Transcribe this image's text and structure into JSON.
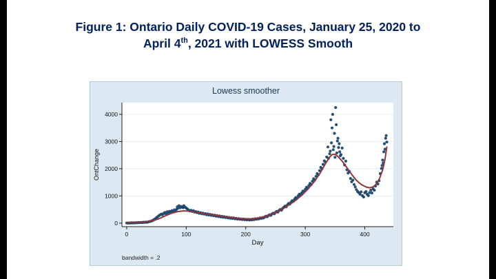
{
  "slide": {
    "title_line1": "Figure 1: Ontario Daily COVID-19 Cases, January 25, 2020 to",
    "title_line2_base": "April 4",
    "title_line2_sup": "th",
    "title_line2_rest": ", 2021 with LOWESS Smooth",
    "title_color": "#002060"
  },
  "chart_data": {
    "type": "scatter",
    "title": "Lowess smoother",
    "xlabel": "Day",
    "ylabel": "OntChange",
    "note": "bandwidth = .2",
    "legend_position": "none",
    "grid": true,
    "xlim": [
      -8,
      448
    ],
    "ylim": [
      -130,
      4430
    ],
    "xticks": [
      0,
      100,
      200,
      300,
      400
    ],
    "yticks": [
      0,
      1000,
      2000,
      3000,
      4000
    ],
    "colors": {
      "scatter": "#1a476f",
      "lowess": "#90353b",
      "plot_bg": "#ffffff",
      "outer_bg": "#dce8f2",
      "grid": "#e2edf6",
      "axis": "#1c1c1c",
      "tick_text": "#111111"
    },
    "series": [
      {
        "name": "OntChange scatter",
        "type": "scatter",
        "points": [
          [
            0,
            5
          ],
          [
            2,
            1
          ],
          [
            4,
            8
          ],
          [
            6,
            3
          ],
          [
            8,
            12
          ],
          [
            10,
            6
          ],
          [
            12,
            15
          ],
          [
            14,
            9
          ],
          [
            16,
            18
          ],
          [
            18,
            12
          ],
          [
            20,
            22
          ],
          [
            22,
            16
          ],
          [
            24,
            28
          ],
          [
            26,
            20
          ],
          [
            28,
            34
          ],
          [
            30,
            26
          ],
          [
            32,
            40
          ],
          [
            34,
            32
          ],
          [
            36,
            48
          ],
          [
            38,
            55
          ],
          [
            40,
            65
          ],
          [
            42,
            80
          ],
          [
            44,
            100
          ],
          [
            46,
            130
          ],
          [
            48,
            160
          ],
          [
            50,
            200
          ],
          [
            52,
            235
          ],
          [
            54,
            270
          ],
          [
            56,
            300
          ],
          [
            58,
            330
          ],
          [
            60,
            310
          ],
          [
            62,
            355
          ],
          [
            64,
            390
          ],
          [
            66,
            340
          ],
          [
            68,
            420
          ],
          [
            70,
            380
          ],
          [
            72,
            430
          ],
          [
            74,
            400
          ],
          [
            76,
            460
          ],
          [
            78,
            425
          ],
          [
            80,
            485
          ],
          [
            82,
            445
          ],
          [
            84,
            510
          ],
          [
            85,
            600
          ],
          [
            86,
            545
          ],
          [
            88,
            640
          ],
          [
            90,
            565
          ],
          [
            92,
            610
          ],
          [
            94,
            580
          ],
          [
            95,
            570
          ],
          [
            96,
            640
          ],
          [
            98,
            590
          ],
          [
            100,
            555
          ],
          [
            102,
            520
          ],
          [
            104,
            480
          ],
          [
            106,
            445
          ],
          [
            108,
            470
          ],
          [
            110,
            430
          ],
          [
            112,
            455
          ],
          [
            114,
            405
          ],
          [
            116,
            425
          ],
          [
            118,
            385
          ],
          [
            120,
            405
          ],
          [
            122,
            360
          ],
          [
            124,
            385
          ],
          [
            126,
            345
          ],
          [
            128,
            370
          ],
          [
            130,
            330
          ],
          [
            132,
            350
          ],
          [
            134,
            310
          ],
          [
            136,
            335
          ],
          [
            138,
            295
          ],
          [
            140,
            320
          ],
          [
            142,
            285
          ],
          [
            144,
            305
          ],
          [
            146,
            270
          ],
          [
            148,
            292
          ],
          [
            150,
            255
          ],
          [
            152,
            275
          ],
          [
            154,
            240
          ],
          [
            156,
            262
          ],
          [
            158,
            228
          ],
          [
            160,
            250
          ],
          [
            162,
            215
          ],
          [
            164,
            238
          ],
          [
            166,
            205
          ],
          [
            168,
            222
          ],
          [
            170,
            192
          ],
          [
            172,
            210
          ],
          [
            174,
            180
          ],
          [
            176,
            198
          ],
          [
            178,
            168
          ],
          [
            180,
            188
          ],
          [
            182,
            158
          ],
          [
            184,
            175
          ],
          [
            186,
            148
          ],
          [
            188,
            165
          ],
          [
            190,
            140
          ],
          [
            192,
            155
          ],
          [
            194,
            132
          ],
          [
            196,
            148
          ],
          [
            198,
            125
          ],
          [
            200,
            142
          ],
          [
            202,
            118
          ],
          [
            204,
            138
          ],
          [
            206,
            112
          ],
          [
            208,
            132
          ],
          [
            210,
            120
          ],
          [
            212,
            145
          ],
          [
            214,
            128
          ],
          [
            216,
            158
          ],
          [
            218,
            140
          ],
          [
            220,
            170
          ],
          [
            222,
            155
          ],
          [
            224,
            188
          ],
          [
            226,
            172
          ],
          [
            228,
            205
          ],
          [
            230,
            190
          ],
          [
            232,
            228
          ],
          [
            234,
            252
          ],
          [
            236,
            235
          ],
          [
            238,
            278
          ],
          [
            240,
            305
          ],
          [
            242,
            285
          ],
          [
            244,
            335
          ],
          [
            246,
            365
          ],
          [
            248,
            342
          ],
          [
            250,
            395
          ],
          [
            252,
            430
          ],
          [
            254,
            405
          ],
          [
            256,
            465
          ],
          [
            258,
            500
          ],
          [
            260,
            475
          ],
          [
            262,
            540
          ],
          [
            264,
            580
          ],
          [
            266,
            625
          ],
          [
            268,
            600
          ],
          [
            270,
            672
          ],
          [
            272,
            720
          ],
          [
            274,
            700
          ],
          [
            276,
            770
          ],
          [
            278,
            825
          ],
          [
            280,
            800
          ],
          [
            282,
            880
          ],
          [
            284,
            940
          ],
          [
            286,
            915
          ],
          [
            288,
            1000
          ],
          [
            290,
            1065
          ],
          [
            292,
            1030
          ],
          [
            294,
            1110
          ],
          [
            296,
            1180
          ],
          [
            298,
            1150
          ],
          [
            300,
            1240
          ],
          [
            302,
            1320
          ],
          [
            304,
            1280
          ],
          [
            306,
            1380
          ],
          [
            308,
            1460
          ],
          [
            310,
            1420
          ],
          [
            312,
            1540
          ],
          [
            314,
            1630
          ],
          [
            316,
            1590
          ],
          [
            318,
            1720
          ],
          [
            320,
            1820
          ],
          [
            322,
            1780
          ],
          [
            324,
            1930
          ],
          [
            326,
            2050
          ],
          [
            328,
            2000
          ],
          [
            330,
            2160
          ],
          [
            332,
            2290
          ],
          [
            334,
            2240
          ],
          [
            336,
            2430
          ],
          [
            338,
            2800
          ],
          [
            339,
            2380
          ],
          [
            341,
            2550
          ],
          [
            342,
            2650
          ],
          [
            343,
            3800
          ],
          [
            344,
            2950
          ],
          [
            345,
            3500
          ],
          [
            346,
            4000
          ],
          [
            347,
            2700
          ],
          [
            348,
            2820
          ],
          [
            349,
            3300
          ],
          [
            350,
            2420
          ],
          [
            351,
            4250
          ],
          [
            352,
            3620
          ],
          [
            353,
            2580
          ],
          [
            354,
            3020
          ],
          [
            355,
            3120
          ],
          [
            356,
            2780
          ],
          [
            357,
            2920
          ],
          [
            358,
            2620
          ],
          [
            359,
            2480
          ],
          [
            360,
            2520
          ],
          [
            362,
            2760
          ],
          [
            364,
            2380
          ],
          [
            366,
            2140
          ],
          [
            368,
            2280
          ],
          [
            370,
            1960
          ],
          [
            372,
            1840
          ],
          [
            374,
            1900
          ],
          [
            376,
            1640
          ],
          [
            378,
            1520
          ],
          [
            380,
            1580
          ],
          [
            382,
            1420
          ],
          [
            384,
            1330
          ],
          [
            386,
            1230
          ],
          [
            388,
            1160
          ],
          [
            390,
            1120
          ],
          [
            392,
            1060
          ],
          [
            394,
            1150
          ],
          [
            396,
            1010
          ],
          [
            398,
            960
          ],
          [
            400,
            1120
          ],
          [
            402,
            1160
          ],
          [
            404,
            1060
          ],
          [
            406,
            1010
          ],
          [
            408,
            1120
          ],
          [
            410,
            1210
          ],
          [
            412,
            1110
          ],
          [
            414,
            1260
          ],
          [
            416,
            1210
          ],
          [
            418,
            1360
          ],
          [
            420,
            1510
          ],
          [
            422,
            1440
          ],
          [
            424,
            1560
          ],
          [
            426,
            1820
          ],
          [
            428,
            2010
          ],
          [
            429,
            2120
          ],
          [
            430,
            2320
          ],
          [
            431,
            2210
          ],
          [
            432,
            2620
          ],
          [
            433,
            2920
          ],
          [
            434,
            2720
          ],
          [
            435,
            3120
          ],
          [
            436,
            3220
          ],
          [
            437,
            2980
          ]
        ]
      },
      {
        "name": "LOWESS smooth",
        "type": "line",
        "points": [
          [
            0,
            25
          ],
          [
            15,
            30
          ],
          [
            30,
            45
          ],
          [
            45,
            90
          ],
          [
            55,
            170
          ],
          [
            65,
            270
          ],
          [
            75,
            360
          ],
          [
            85,
            420
          ],
          [
            95,
            450
          ],
          [
            105,
            440
          ],
          [
            115,
            410
          ],
          [
            125,
            370
          ],
          [
            135,
            330
          ],
          [
            145,
            300
          ],
          [
            155,
            270
          ],
          [
            165,
            240
          ],
          [
            175,
            210
          ],
          [
            185,
            185
          ],
          [
            195,
            165
          ],
          [
            205,
            155
          ],
          [
            215,
            165
          ],
          [
            225,
            200
          ],
          [
            235,
            260
          ],
          [
            245,
            340
          ],
          [
            255,
            440
          ],
          [
            265,
            560
          ],
          [
            275,
            700
          ],
          [
            285,
            860
          ],
          [
            295,
            1040
          ],
          [
            305,
            1260
          ],
          [
            315,
            1520
          ],
          [
            325,
            1840
          ],
          [
            333,
            2150
          ],
          [
            340,
            2400
          ],
          [
            345,
            2520
          ],
          [
            350,
            2530
          ],
          [
            355,
            2450
          ],
          [
            362,
            2280
          ],
          [
            370,
            2040
          ],
          [
            378,
            1790
          ],
          [
            386,
            1570
          ],
          [
            394,
            1420
          ],
          [
            402,
            1330
          ],
          [
            408,
            1300
          ],
          [
            414,
            1330
          ],
          [
            420,
            1450
          ],
          [
            425,
            1650
          ],
          [
            430,
            1950
          ],
          [
            434,
            2350
          ],
          [
            437,
            2800
          ]
        ]
      }
    ]
  }
}
